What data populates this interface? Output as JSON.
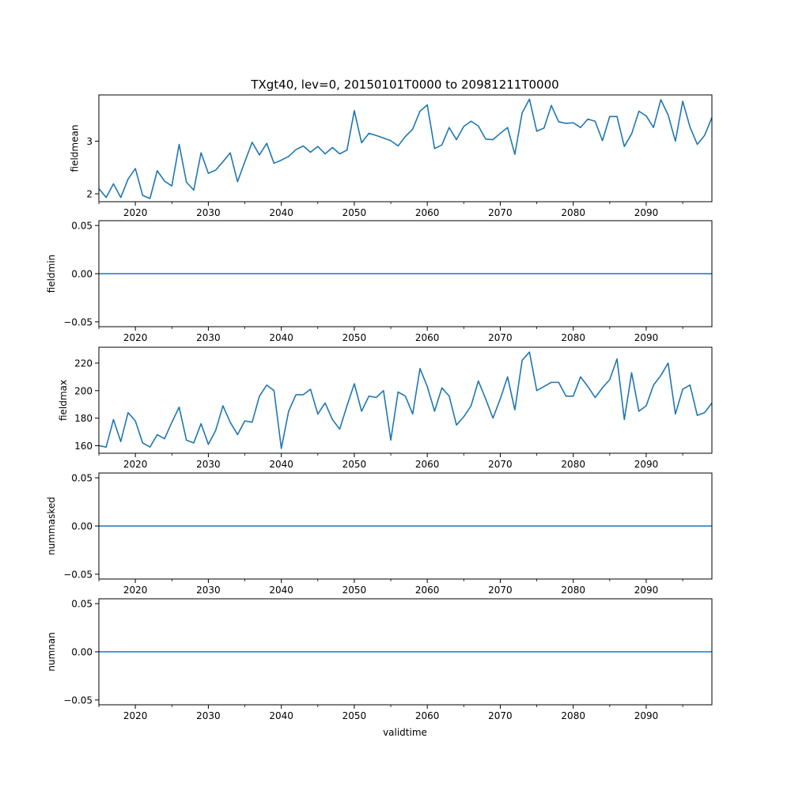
{
  "figure": {
    "title": "TXgt40, lev=0, 20150101T0000 to 20981211T0000",
    "xlabel": "validtime"
  },
  "colors": {
    "line": "#1f77b4",
    "axes": "#000000",
    "background": "#ffffff"
  },
  "chart_data": [
    {
      "type": "line",
      "ylabel": "fieldmean",
      "xlim": [
        2015,
        2099
      ],
      "ylim": [
        1.85,
        3.88
      ],
      "yticks": [
        2,
        3
      ],
      "ytick_labels": [
        "2",
        "3"
      ],
      "xticks": [
        2020,
        2030,
        2040,
        2050,
        2060,
        2070,
        2080,
        2090
      ],
      "xtick_labels": [
        "2020",
        "2030",
        "2040",
        "2050",
        "2060",
        "2070",
        "2080",
        "2090"
      ],
      "x": [
        2015,
        2016,
        2017,
        2018,
        2019,
        2020,
        2021,
        2022,
        2023,
        2024,
        2025,
        2026,
        2027,
        2028,
        2029,
        2030,
        2031,
        2032,
        2033,
        2034,
        2035,
        2036,
        2037,
        2038,
        2039,
        2040,
        2041,
        2042,
        2043,
        2044,
        2045,
        2046,
        2047,
        2048,
        2049,
        2050,
        2051,
        2052,
        2053,
        2054,
        2055,
        2056,
        2057,
        2058,
        2059,
        2060,
        2061,
        2062,
        2063,
        2064,
        2065,
        2066,
        2067,
        2068,
        2069,
        2070,
        2071,
        2072,
        2073,
        2074,
        2075,
        2076,
        2077,
        2078,
        2079,
        2080,
        2081,
        2082,
        2083,
        2084,
        2085,
        2086,
        2087,
        2088,
        2089,
        2090,
        2091,
        2092,
        2093,
        2094,
        2095,
        2096,
        2097,
        2098,
        2099
      ],
      "values": [
        2.1,
        1.93,
        2.19,
        1.93,
        2.28,
        2.48,
        1.97,
        1.91,
        2.44,
        2.24,
        2.15,
        2.94,
        2.22,
        2.07,
        2.78,
        2.39,
        2.45,
        2.61,
        2.78,
        2.23,
        2.61,
        2.98,
        2.74,
        2.96,
        2.58,
        2.64,
        2.71,
        2.84,
        2.91,
        2.79,
        2.9,
        2.76,
        2.88,
        2.76,
        2.83,
        3.58,
        2.97,
        3.15,
        3.11,
        3.06,
        3.01,
        2.91,
        3.09,
        3.23,
        3.57,
        3.69,
        2.86,
        2.93,
        3.26,
        3.03,
        3.28,
        3.38,
        3.29,
        3.04,
        3.03,
        3.15,
        3.26,
        2.75,
        3.54,
        3.8,
        3.19,
        3.25,
        3.68,
        3.37,
        3.34,
        3.35,
        3.26,
        3.42,
        3.38,
        3.01,
        3.47,
        3.47,
        2.9,
        3.14,
        3.57,
        3.48,
        3.26,
        3.79,
        3.5,
        3.0,
        3.76,
        3.27,
        2.94,
        3.11,
        3.45
      ]
    },
    {
      "type": "line",
      "ylabel": "fieldmin",
      "xlim": [
        2015,
        2099
      ],
      "ylim": [
        -0.055,
        0.055
      ],
      "yticks": [
        -0.05,
        0.0,
        0.05
      ],
      "ytick_labels": [
        "−0.05",
        "0.00",
        "0.05"
      ],
      "xticks": [
        2020,
        2030,
        2040,
        2050,
        2060,
        2070,
        2080,
        2090
      ],
      "xtick_labels": [
        "2020",
        "2030",
        "2040",
        "2050",
        "2060",
        "2070",
        "2080",
        "2090"
      ],
      "x": [
        2015,
        2099
      ],
      "values": [
        0,
        0
      ]
    },
    {
      "type": "line",
      "ylabel": "fieldmax",
      "xlim": [
        2015,
        2099
      ],
      "ylim": [
        154.5,
        231.5
      ],
      "yticks": [
        160,
        180,
        200,
        220
      ],
      "ytick_labels": [
        "160",
        "180",
        "200",
        "220"
      ],
      "xticks": [
        2020,
        2030,
        2040,
        2050,
        2060,
        2070,
        2080,
        2090
      ],
      "xtick_labels": [
        "2020",
        "2030",
        "2040",
        "2050",
        "2060",
        "2070",
        "2080",
        "2090"
      ],
      "x": [
        2015,
        2016,
        2017,
        2018,
        2019,
        2020,
        2021,
        2022,
        2023,
        2024,
        2025,
        2026,
        2027,
        2028,
        2029,
        2030,
        2031,
        2032,
        2033,
        2034,
        2035,
        2036,
        2037,
        2038,
        2039,
        2040,
        2041,
        2042,
        2043,
        2044,
        2045,
        2046,
        2047,
        2048,
        2049,
        2050,
        2051,
        2052,
        2053,
        2054,
        2055,
        2056,
        2057,
        2058,
        2059,
        2060,
        2061,
        2062,
        2063,
        2064,
        2065,
        2066,
        2067,
        2068,
        2069,
        2070,
        2071,
        2072,
        2073,
        2074,
        2075,
        2076,
        2077,
        2078,
        2079,
        2080,
        2081,
        2082,
        2083,
        2084,
        2085,
        2086,
        2087,
        2088,
        2089,
        2090,
        2091,
        2092,
        2093,
        2094,
        2095,
        2096,
        2097,
        2098,
        2099
      ],
      "values": [
        160,
        159,
        179,
        163,
        184,
        178,
        162,
        159,
        168,
        165,
        177,
        188,
        164,
        162,
        176,
        161,
        171,
        189,
        177,
        168,
        178,
        177,
        196,
        204,
        200,
        158,
        185,
        197,
        197,
        201,
        183,
        191,
        179,
        172,
        189,
        205,
        185,
        196,
        195,
        200,
        164,
        199,
        196,
        183,
        216,
        203,
        185,
        202,
        196,
        175,
        181,
        189,
        207,
        194,
        180,
        194,
        210,
        186,
        222,
        228,
        200,
        203,
        206,
        206,
        196,
        196,
        210,
        203,
        195,
        202,
        208,
        223,
        179,
        213,
        185,
        189,
        204,
        211,
        220,
        183,
        201,
        204,
        182,
        184,
        191
      ]
    },
    {
      "type": "line",
      "ylabel": "nummasked",
      "xlim": [
        2015,
        2099
      ],
      "ylim": [
        -0.055,
        0.055
      ],
      "yticks": [
        -0.05,
        0.0,
        0.05
      ],
      "ytick_labels": [
        "−0.05",
        "0.00",
        "0.05"
      ],
      "xticks": [
        2020,
        2030,
        2040,
        2050,
        2060,
        2070,
        2080,
        2090
      ],
      "xtick_labels": [
        "2020",
        "2030",
        "2040",
        "2050",
        "2060",
        "2070",
        "2080",
        "2090"
      ],
      "x": [
        2015,
        2099
      ],
      "values": [
        0,
        0
      ]
    },
    {
      "type": "line",
      "ylabel": "numnan",
      "xlim": [
        2015,
        2099
      ],
      "ylim": [
        -0.055,
        0.055
      ],
      "yticks": [
        -0.05,
        0.0,
        0.05
      ],
      "ytick_labels": [
        "−0.05",
        "0.00",
        "0.05"
      ],
      "xticks": [
        2020,
        2030,
        2040,
        2050,
        2060,
        2070,
        2080,
        2090
      ],
      "xtick_labels": [
        "2020",
        "2030",
        "2040",
        "2050",
        "2060",
        "2070",
        "2080",
        "2090"
      ],
      "x": [
        2015,
        2099
      ],
      "values": [
        0,
        0
      ]
    }
  ]
}
